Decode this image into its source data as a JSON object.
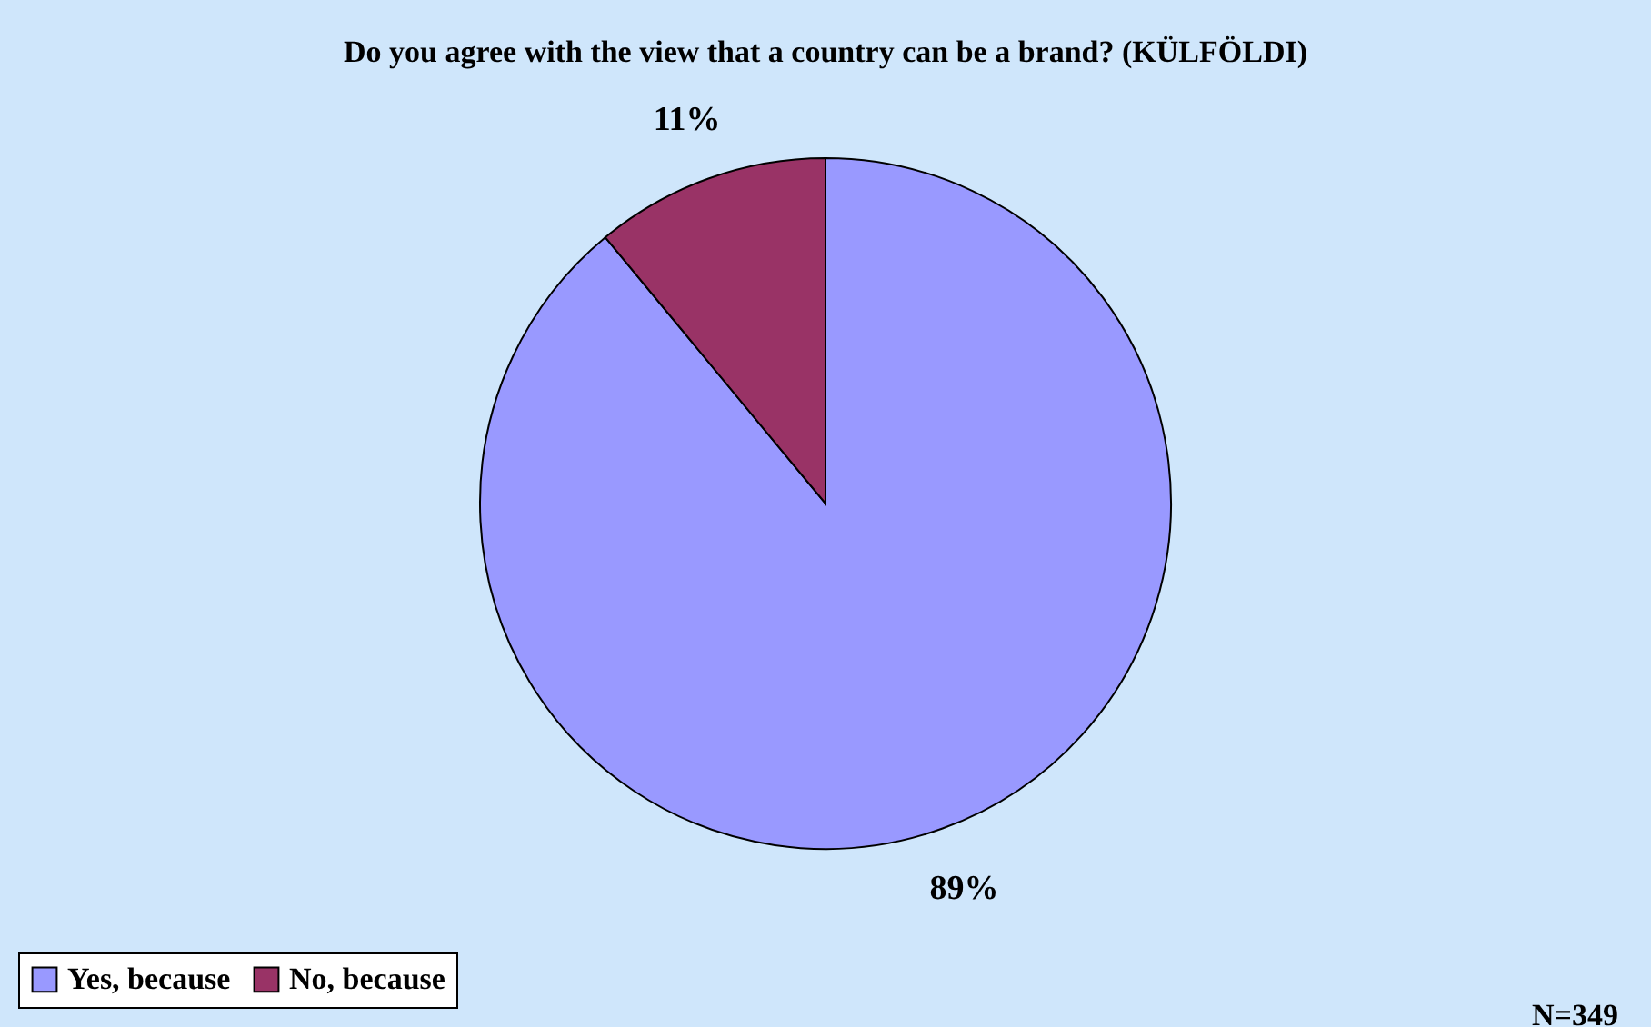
{
  "chart_data": {
    "type": "pie",
    "title": "Do you agree with the view that a country can be a brand? (KÜLFÖLDI)",
    "categories": [
      "Yes, because",
      "No, because"
    ],
    "values": [
      89,
      11
    ],
    "colors": [
      "#9999ff",
      "#993366"
    ],
    "value_labels": [
      "89%",
      "11%"
    ],
    "legend": "bottom",
    "annotations": [
      "N=349"
    ]
  }
}
